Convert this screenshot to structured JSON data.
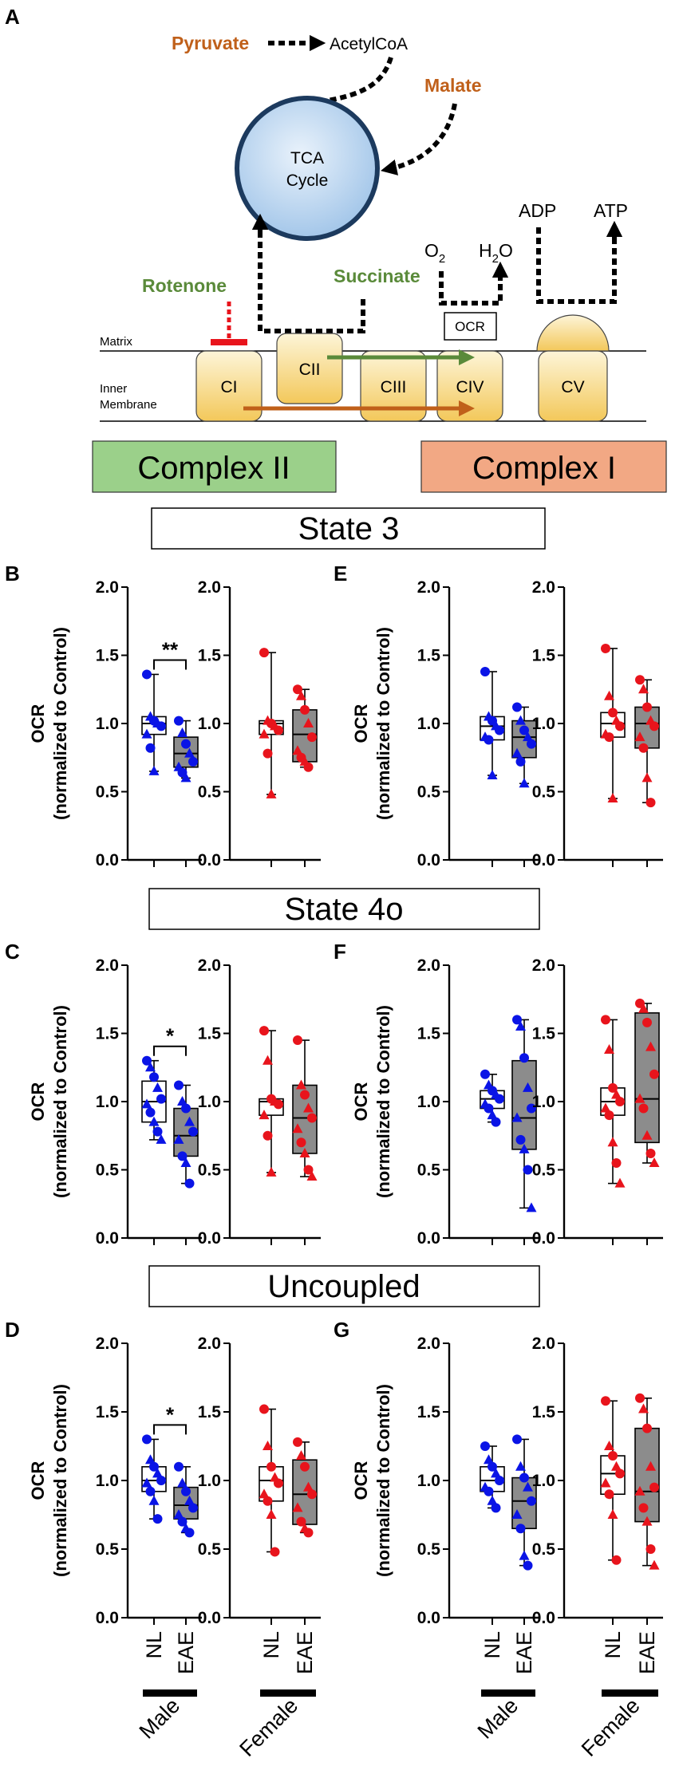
{
  "figure": {
    "panel_labels": {
      "A": "A",
      "B": "B",
      "C": "C",
      "D": "D",
      "E": "E",
      "F": "F",
      "G": "G"
    },
    "diagram": {
      "pyruvate": "Pyruvate",
      "acetylcoa": "AcetylCoA",
      "malate": "Malate",
      "tca_line1": "TCA",
      "tca_line2": "Cycle",
      "adp": "ADP",
      "atp": "ATP",
      "o2": "O",
      "o2_sub": "2",
      "h2o_h": "H",
      "h2o_sub": "2",
      "h2o_o": "O",
      "ocr_box": "OCR",
      "rotenone": "Rotenone",
      "succinate": "Succinate",
      "matrix": "Matrix",
      "inner_line1": "Inner",
      "inner_line2": "Membrane",
      "complexes": {
        "ci": "CI",
        "cii": "CII",
        "ciii": "CIII",
        "civ": "CIV",
        "cv": "CV"
      }
    },
    "complex_ii_label": "Complex II",
    "complex_i_label": "Complex I",
    "banners": {
      "state3": "State 3",
      "state4o": "State 4o",
      "uncoupled": "Uncoupled"
    },
    "y_label_line1": "OCR",
    "y_label_line2": "(normalized to Control)",
    "ticks": [
      "0.0",
      "0.5",
      "1.0",
      "1.5",
      "2.0"
    ],
    "x_categories": [
      "NL",
      "EAE"
    ],
    "groups": [
      "Male",
      "Female"
    ],
    "colors": {
      "male": "#0a14e6",
      "female": "#e8141c",
      "nl_box": "#ffffff",
      "eae_box": "#8c8c8c",
      "green": "#5a8a3a",
      "orange": "#c0601a",
      "complex_ii_bg": "#9bd08a",
      "complex_i_bg": "#f2a884"
    }
  },
  "chart_data": [
    {
      "panel": "B",
      "type": "box",
      "condition": "State 3",
      "substrate": "Complex II",
      "ylim": [
        0,
        2
      ],
      "significance": "**",
      "male": {
        "NL": {
          "min": 0.65,
          "q1": 0.92,
          "median": 1.0,
          "q3": 1.05,
          "max": 1.36,
          "points": [
            1.36,
            1.05,
            1.02,
            1.0,
            0.98,
            0.92,
            0.82,
            0.65
          ]
        },
        "EAE": {
          "min": 0.6,
          "q1": 0.68,
          "median": 0.78,
          "q3": 0.9,
          "max": 1.02,
          "points": [
            1.02,
            0.93,
            0.85,
            0.78,
            0.72,
            0.68,
            0.64,
            0.6
          ]
        }
      },
      "female": {
        "NL": {
          "min": 0.48,
          "q1": 0.92,
          "median": 1.0,
          "q3": 1.02,
          "max": 1.52,
          "points": [
            1.52,
            1.02,
            1.0,
            0.98,
            0.95,
            0.92,
            0.78,
            0.48
          ]
        },
        "EAE": {
          "min": 0.68,
          "q1": 0.72,
          "median": 0.92,
          "q3": 1.1,
          "max": 1.25,
          "points": [
            1.25,
            1.2,
            1.1,
            1.0,
            0.9,
            0.8,
            0.75,
            0.72,
            0.68
          ]
        }
      }
    },
    {
      "panel": "E",
      "type": "box",
      "condition": "State 3",
      "substrate": "Complex I",
      "ylim": [
        0,
        2
      ],
      "male": {
        "NL": {
          "min": 0.62,
          "q1": 0.88,
          "median": 0.98,
          "q3": 1.05,
          "max": 1.38,
          "points": [
            1.38,
            1.05,
            1.02,
            0.98,
            0.95,
            0.9,
            0.88,
            0.62
          ]
        },
        "EAE": {
          "min": 0.56,
          "q1": 0.75,
          "median": 0.9,
          "q3": 1.02,
          "max": 1.12,
          "points": [
            1.12,
            1.02,
            0.95,
            0.9,
            0.85,
            0.78,
            0.72,
            0.56
          ]
        }
      },
      "female": {
        "NL": {
          "min": 0.45,
          "q1": 0.9,
          "median": 1.0,
          "q3": 1.08,
          "max": 1.55,
          "points": [
            1.55,
            1.2,
            1.08,
            1.02,
            0.98,
            0.92,
            0.9,
            0.45
          ]
        },
        "EAE": {
          "min": 0.42,
          "q1": 0.82,
          "median": 1.0,
          "q3": 1.12,
          "max": 1.32,
          "points": [
            1.32,
            1.25,
            1.12,
            1.02,
            0.98,
            0.9,
            0.82,
            0.6,
            0.42
          ]
        }
      }
    },
    {
      "panel": "C",
      "type": "box",
      "condition": "State 4o",
      "substrate": "Complex II",
      "ylim": [
        0,
        2
      ],
      "significance": "*",
      "male": {
        "NL": {
          "min": 0.72,
          "q1": 0.85,
          "median": 1.0,
          "q3": 1.15,
          "max": 1.3,
          "points": [
            1.3,
            1.25,
            1.18,
            1.1,
            1.02,
            0.98,
            0.92,
            0.85,
            0.78,
            0.72
          ]
        },
        "EAE": {
          "min": 0.4,
          "q1": 0.6,
          "median": 0.75,
          "q3": 0.95,
          "max": 1.12,
          "points": [
            1.12,
            1.0,
            0.95,
            0.85,
            0.78,
            0.72,
            0.6,
            0.55,
            0.4
          ]
        }
      },
      "female": {
        "NL": {
          "min": 0.48,
          "q1": 0.9,
          "median": 1.0,
          "q3": 1.02,
          "max": 1.52,
          "points": [
            1.52,
            1.3,
            1.02,
            1.0,
            0.98,
            0.9,
            0.75,
            0.48
          ]
        },
        "EAE": {
          "min": 0.45,
          "q1": 0.62,
          "median": 0.88,
          "q3": 1.12,
          "max": 1.45,
          "points": [
            1.45,
            1.12,
            1.05,
            0.95,
            0.88,
            0.8,
            0.7,
            0.62,
            0.5,
            0.45
          ]
        }
      }
    },
    {
      "panel": "F",
      "type": "box",
      "condition": "State 4o",
      "substrate": "Complex I",
      "ylim": [
        0,
        2
      ],
      "male": {
        "NL": {
          "min": 0.85,
          "q1": 0.95,
          "median": 1.02,
          "q3": 1.08,
          "max": 1.2,
          "points": [
            1.2,
            1.12,
            1.08,
            1.05,
            1.02,
            0.98,
            0.95,
            0.9,
            0.85
          ]
        },
        "EAE": {
          "min": 0.22,
          "q1": 0.65,
          "median": 0.88,
          "q3": 1.3,
          "max": 1.6,
          "points": [
            1.6,
            1.55,
            1.32,
            1.1,
            0.95,
            0.88,
            0.72,
            0.65,
            0.5,
            0.22
          ]
        }
      },
      "female": {
        "NL": {
          "min": 0.4,
          "q1": 0.9,
          "median": 1.0,
          "q3": 1.1,
          "max": 1.6,
          "points": [
            1.6,
            1.38,
            1.1,
            1.05,
            1.0,
            0.95,
            0.9,
            0.7,
            0.55,
            0.4
          ]
        },
        "EAE": {
          "min": 0.55,
          "q1": 0.7,
          "median": 1.02,
          "q3": 1.65,
          "max": 1.72,
          "points": [
            1.72,
            1.68,
            1.58,
            1.4,
            1.2,
            1.02,
            0.95,
            0.75,
            0.62,
            0.55
          ]
        }
      }
    },
    {
      "panel": "D",
      "type": "box",
      "condition": "Uncoupled",
      "substrate": "Complex II",
      "ylim": [
        0,
        2
      ],
      "significance": "*",
      "male": {
        "NL": {
          "min": 0.72,
          "q1": 0.92,
          "median": 1.0,
          "q3": 1.1,
          "max": 1.3,
          "points": [
            1.3,
            1.15,
            1.1,
            1.05,
            1.0,
            0.98,
            0.92,
            0.85,
            0.72
          ]
        },
        "EAE": {
          "min": 0.62,
          "q1": 0.72,
          "median": 0.82,
          "q3": 0.95,
          "max": 1.1,
          "points": [
            1.1,
            0.98,
            0.92,
            0.85,
            0.8,
            0.75,
            0.7,
            0.65,
            0.62
          ]
        }
      },
      "female": {
        "NL": {
          "min": 0.48,
          "q1": 0.85,
          "median": 1.0,
          "q3": 1.1,
          "max": 1.52,
          "points": [
            1.52,
            1.25,
            1.1,
            1.02,
            0.98,
            0.9,
            0.85,
            0.75,
            0.48
          ]
        },
        "EAE": {
          "min": 0.62,
          "q1": 0.68,
          "median": 0.9,
          "q3": 1.15,
          "max": 1.28,
          "points": [
            1.28,
            1.18,
            1.1,
            0.95,
            0.9,
            0.8,
            0.7,
            0.65,
            0.62
          ]
        }
      }
    },
    {
      "panel": "G",
      "type": "box",
      "condition": "Uncoupled",
      "substrate": "Complex I",
      "ylim": [
        0,
        2
      ],
      "male": {
        "NL": {
          "min": 0.8,
          "q1": 0.92,
          "median": 1.0,
          "q3": 1.1,
          "max": 1.25,
          "points": [
            1.25,
            1.15,
            1.1,
            1.05,
            1.0,
            0.95,
            0.92,
            0.85,
            0.8
          ]
        },
        "EAE": {
          "min": 0.38,
          "q1": 0.65,
          "median": 0.85,
          "q3": 1.02,
          "max": 1.3,
          "points": [
            1.3,
            1.1,
            1.02,
            0.95,
            0.85,
            0.75,
            0.65,
            0.45,
            0.38
          ]
        }
      },
      "female": {
        "NL": {
          "min": 0.42,
          "q1": 0.9,
          "median": 1.05,
          "q3": 1.18,
          "max": 1.58,
          "points": [
            1.58,
            1.25,
            1.18,
            1.1,
            1.05,
            0.98,
            0.9,
            0.75,
            0.42
          ]
        },
        "EAE": {
          "min": 0.38,
          "q1": 0.7,
          "median": 0.92,
          "q3": 1.38,
          "max": 1.6,
          "points": [
            1.6,
            1.52,
            1.38,
            1.1,
            0.95,
            0.92,
            0.8,
            0.7,
            0.5,
            0.38
          ]
        }
      }
    }
  ]
}
